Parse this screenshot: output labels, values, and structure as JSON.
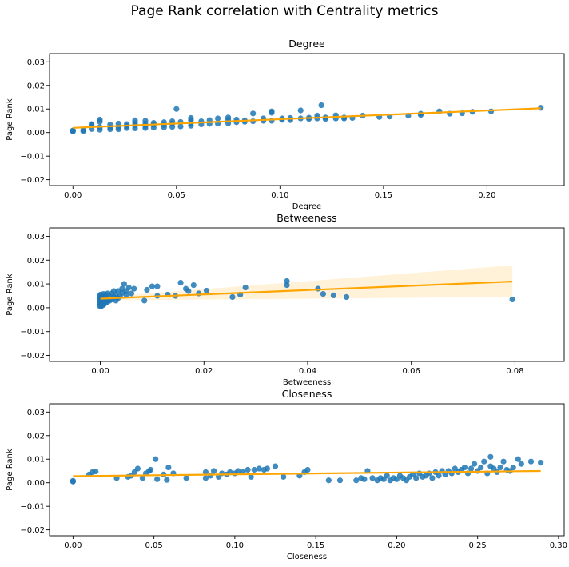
{
  "figure": {
    "suptitle": "Page Rank correlation with Centrality metrics"
  },
  "chart_data": [
    {
      "type": "scatter",
      "title": "Degree",
      "xlabel": "Degree",
      "ylabel": "Page Rank",
      "xlim": [
        -0.0113,
        0.2373
      ],
      "ylim": [
        -0.0225,
        0.0335
      ],
      "xticks": [
        0.0,
        0.05,
        0.1,
        0.15,
        0.2
      ],
      "xtick_labels": [
        "0.00",
        "0.05",
        "0.10",
        "0.15",
        "0.20"
      ],
      "yticks": [
        -0.02,
        -0.01,
        0.0,
        0.01,
        0.02,
        0.03
      ],
      "ytick_labels": [
        "−0.02",
        "−0.01",
        "0.00",
        "0.01",
        "0.02",
        "0.03"
      ],
      "point_color": "#1f77b4",
      "line_color": "#ffa500",
      "grid": false,
      "regression": {
        "x": [
          0.0,
          0.226
        ],
        "y": [
          0.002,
          0.0103
        ]
      },
      "points": [
        [
          0.0,
          0.0005
        ],
        [
          0.0,
          0.0007
        ],
        [
          0.0,
          0.0009
        ],
        [
          0.005,
          0.0006
        ],
        [
          0.005,
          0.0011
        ],
        [
          0.009,
          0.0015
        ],
        [
          0.009,
          0.0031
        ],
        [
          0.009,
          0.0036
        ],
        [
          0.013,
          0.0012
        ],
        [
          0.013,
          0.0023
        ],
        [
          0.013,
          0.0046
        ],
        [
          0.013,
          0.0055
        ],
        [
          0.018,
          0.0014
        ],
        [
          0.018,
          0.0021
        ],
        [
          0.018,
          0.0034
        ],
        [
          0.022,
          0.0014
        ],
        [
          0.022,
          0.0023
        ],
        [
          0.022,
          0.0038
        ],
        [
          0.026,
          0.0019
        ],
        [
          0.026,
          0.0028
        ],
        [
          0.026,
          0.0036
        ],
        [
          0.03,
          0.0018
        ],
        [
          0.03,
          0.003
        ],
        [
          0.03,
          0.004
        ],
        [
          0.03,
          0.0052
        ],
        [
          0.035,
          0.0019
        ],
        [
          0.035,
          0.0028
        ],
        [
          0.035,
          0.0038
        ],
        [
          0.035,
          0.005
        ],
        [
          0.039,
          0.0021
        ],
        [
          0.039,
          0.0033
        ],
        [
          0.039,
          0.0041
        ],
        [
          0.044,
          0.0022
        ],
        [
          0.044,
          0.0032
        ],
        [
          0.044,
          0.0044
        ],
        [
          0.048,
          0.0024
        ],
        [
          0.048,
          0.0038
        ],
        [
          0.048,
          0.0048
        ],
        [
          0.05,
          0.01
        ],
        [
          0.052,
          0.0026
        ],
        [
          0.052,
          0.0045
        ],
        [
          0.057,
          0.0029
        ],
        [
          0.057,
          0.0041
        ],
        [
          0.057,
          0.0053
        ],
        [
          0.057,
          0.0062
        ],
        [
          0.062,
          0.0035
        ],
        [
          0.062,
          0.0048
        ],
        [
          0.066,
          0.0037
        ],
        [
          0.066,
          0.0053
        ],
        [
          0.07,
          0.0038
        ],
        [
          0.07,
          0.006
        ],
        [
          0.075,
          0.0039
        ],
        [
          0.075,
          0.0055
        ],
        [
          0.075,
          0.0064
        ],
        [
          0.079,
          0.0044
        ],
        [
          0.079,
          0.0055
        ],
        [
          0.083,
          0.0046
        ],
        [
          0.083,
          0.0052
        ],
        [
          0.087,
          0.0048
        ],
        [
          0.087,
          0.0081
        ],
        [
          0.092,
          0.005
        ],
        [
          0.092,
          0.006
        ],
        [
          0.096,
          0.005
        ],
        [
          0.096,
          0.0084
        ],
        [
          0.096,
          0.009
        ],
        [
          0.101,
          0.0054
        ],
        [
          0.101,
          0.006
        ],
        [
          0.105,
          0.0053
        ],
        [
          0.105,
          0.0062
        ],
        [
          0.11,
          0.006
        ],
        [
          0.11,
          0.0094
        ],
        [
          0.114,
          0.0058
        ],
        [
          0.114,
          0.0063
        ],
        [
          0.118,
          0.006
        ],
        [
          0.118,
          0.0072
        ],
        [
          0.12,
          0.0116
        ],
        [
          0.122,
          0.0058
        ],
        [
          0.122,
          0.0064
        ],
        [
          0.127,
          0.006
        ],
        [
          0.127,
          0.0073
        ],
        [
          0.131,
          0.006
        ],
        [
          0.131,
          0.0064
        ],
        [
          0.135,
          0.0062
        ],
        [
          0.14,
          0.0072
        ],
        [
          0.148,
          0.0066
        ],
        [
          0.153,
          0.0068
        ],
        [
          0.162,
          0.0072
        ],
        [
          0.168,
          0.0075
        ],
        [
          0.168,
          0.008
        ],
        [
          0.177,
          0.009
        ],
        [
          0.182,
          0.008
        ],
        [
          0.188,
          0.0082
        ],
        [
          0.193,
          0.0088
        ],
        [
          0.202,
          0.009
        ],
        [
          0.226,
          0.0105
        ]
      ]
    },
    {
      "type": "scatter",
      "title": "Betweeness",
      "xlabel": "Betweeness",
      "ylabel": "Page Rank",
      "xlim": [
        -0.0098,
        0.0895
      ],
      "ylim": [
        -0.0225,
        0.0335
      ],
      "xticks": [
        0.0,
        0.02,
        0.04,
        0.06,
        0.08
      ],
      "xtick_labels": [
        "0.00",
        "0.02",
        "0.04",
        "0.06",
        "0.08"
      ],
      "yticks": [
        -0.02,
        -0.01,
        0.0,
        0.01,
        0.02,
        0.03
      ],
      "ytick_labels": [
        "−0.02",
        "−0.01",
        "0.00",
        "0.01",
        "0.02",
        "0.03"
      ],
      "point_color": "#1f77b4",
      "line_color": "#ffa500",
      "ci_color": "#ffa500",
      "grid": false,
      "regression": {
        "x": [
          0.0,
          0.0795
        ],
        "y": [
          0.0038,
          0.011
        ]
      },
      "confidence_band": {
        "x": [
          0.0,
          0.0795
        ],
        "upper": [
          0.0045,
          0.0178
        ],
        "lower": [
          0.0031,
          0.0045
        ]
      },
      "points": [
        [
          0.0,
          0.0005
        ],
        [
          0.0,
          0.001
        ],
        [
          0.0,
          0.0015
        ],
        [
          0.0,
          0.002
        ],
        [
          0.0,
          0.0025
        ],
        [
          0.0,
          0.003
        ],
        [
          0.0,
          0.0035
        ],
        [
          0.0,
          0.004
        ],
        [
          0.0,
          0.0045
        ],
        [
          0.0,
          0.005
        ],
        [
          0.0,
          0.0055
        ],
        [
          0.0003,
          0.0008
        ],
        [
          0.0003,
          0.0018
        ],
        [
          0.0003,
          0.0028
        ],
        [
          0.0003,
          0.0038
        ],
        [
          0.0003,
          0.0048
        ],
        [
          0.0006,
          0.0012
        ],
        [
          0.0006,
          0.0025
        ],
        [
          0.0006,
          0.0035
        ],
        [
          0.0006,
          0.0045
        ],
        [
          0.0006,
          0.0058
        ],
        [
          0.001,
          0.002
        ],
        [
          0.001,
          0.003
        ],
        [
          0.001,
          0.0042
        ],
        [
          0.001,
          0.0055
        ],
        [
          0.0014,
          0.0025
        ],
        [
          0.0014,
          0.004
        ],
        [
          0.0014,
          0.006
        ],
        [
          0.0018,
          0.003
        ],
        [
          0.0018,
          0.0048
        ],
        [
          0.0022,
          0.0035
        ],
        [
          0.0022,
          0.006
        ],
        [
          0.0026,
          0.0045
        ],
        [
          0.0026,
          0.007
        ],
        [
          0.003,
          0.003
        ],
        [
          0.003,
          0.0055
        ],
        [
          0.0034,
          0.004
        ],
        [
          0.0034,
          0.007
        ],
        [
          0.0038,
          0.0048
        ],
        [
          0.0042,
          0.0062
        ],
        [
          0.0042,
          0.008
        ],
        [
          0.0046,
          0.01
        ],
        [
          0.005,
          0.0055
        ],
        [
          0.005,
          0.007
        ],
        [
          0.0055,
          0.0085
        ],
        [
          0.006,
          0.006
        ],
        [
          0.0065,
          0.008
        ],
        [
          0.0085,
          0.003
        ],
        [
          0.009,
          0.0075
        ],
        [
          0.01,
          0.009
        ],
        [
          0.011,
          0.005
        ],
        [
          0.011,
          0.009
        ],
        [
          0.013,
          0.0055
        ],
        [
          0.0145,
          0.005
        ],
        [
          0.0155,
          0.0105
        ],
        [
          0.0165,
          0.008
        ],
        [
          0.017,
          0.007
        ],
        [
          0.018,
          0.0095
        ],
        [
          0.019,
          0.006
        ],
        [
          0.0205,
          0.0072
        ],
        [
          0.0255,
          0.0045
        ],
        [
          0.027,
          0.0055
        ],
        [
          0.028,
          0.0085
        ],
        [
          0.036,
          0.0095
        ],
        [
          0.036,
          0.0112
        ],
        [
          0.042,
          0.008
        ],
        [
          0.043,
          0.0058
        ],
        [
          0.045,
          0.0052
        ],
        [
          0.0475,
          0.0045
        ],
        [
          0.0795,
          0.0035
        ]
      ]
    },
    {
      "type": "scatter",
      "title": "Closeness",
      "xlabel": "Closeness",
      "ylabel": "Page Rank",
      "xlim": [
        -0.0145,
        0.3035
      ],
      "ylim": [
        -0.0225,
        0.0335
      ],
      "xticks": [
        0.0,
        0.05,
        0.1,
        0.15,
        0.2,
        0.25,
        0.3
      ],
      "xtick_labels": [
        "0.00",
        "0.05",
        "0.10",
        "0.15",
        "0.20",
        "0.25",
        "0.30"
      ],
      "yticks": [
        -0.02,
        -0.01,
        0.0,
        0.01,
        0.02,
        0.03
      ],
      "ytick_labels": [
        "−0.02",
        "−0.01",
        "0.00",
        "0.01",
        "0.02",
        "0.03"
      ],
      "point_color": "#1f77b4",
      "line_color": "#ffa500",
      "grid": false,
      "regression": {
        "x": [
          0.0,
          0.289
        ],
        "y": [
          0.0028,
          0.005
        ]
      },
      "points": [
        [
          0.0,
          0.0005
        ],
        [
          0.0,
          0.0008
        ],
        [
          0.01,
          0.0035
        ],
        [
          0.012,
          0.0045
        ],
        [
          0.014,
          0.0048
        ],
        [
          0.027,
          0.002
        ],
        [
          0.034,
          0.0025
        ],
        [
          0.036,
          0.003
        ],
        [
          0.038,
          0.0045
        ],
        [
          0.04,
          0.006
        ],
        [
          0.043,
          0.002
        ],
        [
          0.045,
          0.004
        ],
        [
          0.047,
          0.005
        ],
        [
          0.048,
          0.0055
        ],
        [
          0.051,
          0.01
        ],
        [
          0.052,
          0.0015
        ],
        [
          0.056,
          0.0035
        ],
        [
          0.058,
          0.0012
        ],
        [
          0.059,
          0.0065
        ],
        [
          0.062,
          0.004
        ],
        [
          0.07,
          0.002
        ],
        [
          0.082,
          0.002
        ],
        [
          0.082,
          0.0045
        ],
        [
          0.085,
          0.003
        ],
        [
          0.087,
          0.005
        ],
        [
          0.09,
          0.0025
        ],
        [
          0.092,
          0.004
        ],
        [
          0.095,
          0.0035
        ],
        [
          0.097,
          0.0045
        ],
        [
          0.1,
          0.004
        ],
        [
          0.102,
          0.005
        ],
        [
          0.105,
          0.0045
        ],
        [
          0.108,
          0.0055
        ],
        [
          0.11,
          0.0025
        ],
        [
          0.112,
          0.0055
        ],
        [
          0.115,
          0.006
        ],
        [
          0.118,
          0.0055
        ],
        [
          0.12,
          0.006
        ],
        [
          0.125,
          0.007
        ],
        [
          0.13,
          0.0025
        ],
        [
          0.14,
          0.003
        ],
        [
          0.143,
          0.0045
        ],
        [
          0.145,
          0.0055
        ],
        [
          0.158,
          0.001
        ],
        [
          0.165,
          0.001
        ],
        [
          0.175,
          0.001
        ],
        [
          0.178,
          0.002
        ],
        [
          0.18,
          0.0015
        ],
        [
          0.182,
          0.005
        ],
        [
          0.185,
          0.002
        ],
        [
          0.188,
          0.001
        ],
        [
          0.19,
          0.002
        ],
        [
          0.192,
          0.0015
        ],
        [
          0.194,
          0.003
        ],
        [
          0.196,
          0.001
        ],
        [
          0.198,
          0.002
        ],
        [
          0.2,
          0.0015
        ],
        [
          0.202,
          0.003
        ],
        [
          0.204,
          0.002
        ],
        [
          0.206,
          0.001
        ],
        [
          0.208,
          0.0025
        ],
        [
          0.21,
          0.0035
        ],
        [
          0.212,
          0.002
        ],
        [
          0.214,
          0.004
        ],
        [
          0.216,
          0.0025
        ],
        [
          0.218,
          0.003
        ],
        [
          0.22,
          0.004
        ],
        [
          0.222,
          0.002
        ],
        [
          0.224,
          0.0045
        ],
        [
          0.226,
          0.003
        ],
        [
          0.228,
          0.005
        ],
        [
          0.23,
          0.0035
        ],
        [
          0.232,
          0.005
        ],
        [
          0.234,
          0.004
        ],
        [
          0.236,
          0.006
        ],
        [
          0.238,
          0.0045
        ],
        [
          0.24,
          0.0055
        ],
        [
          0.242,
          0.0065
        ],
        [
          0.244,
          0.004
        ],
        [
          0.246,
          0.006
        ],
        [
          0.248,
          0.008
        ],
        [
          0.25,
          0.005
        ],
        [
          0.252,
          0.0065
        ],
        [
          0.254,
          0.009
        ],
        [
          0.256,
          0.004
        ],
        [
          0.258,
          0.007
        ],
        [
          0.258,
          0.011
        ],
        [
          0.26,
          0.006
        ],
        [
          0.262,
          0.0045
        ],
        [
          0.264,
          0.0065
        ],
        [
          0.266,
          0.009
        ],
        [
          0.268,
          0.0055
        ],
        [
          0.27,
          0.005
        ],
        [
          0.272,
          0.0065
        ],
        [
          0.275,
          0.01
        ],
        [
          0.277,
          0.008
        ],
        [
          0.283,
          0.009
        ],
        [
          0.289,
          0.0085
        ]
      ]
    }
  ]
}
